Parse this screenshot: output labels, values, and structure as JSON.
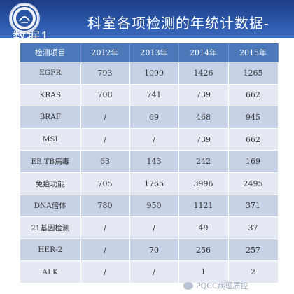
{
  "slide": {
    "title_line1": "科室各项检测的年统计数据-",
    "title_line2": "数据1"
  },
  "table": {
    "headers": [
      "检测项目",
      "2012年",
      "2013年",
      "2014年",
      "2015年"
    ],
    "rows": [
      [
        "EGFR",
        "793",
        "1099",
        "1426",
        "1265"
      ],
      [
        "KRAS",
        "708",
        "741",
        "739",
        "662"
      ],
      [
        "BRAF",
        "/",
        "69",
        "468",
        "945"
      ],
      [
        "MSI",
        "/",
        "/",
        "739",
        "662"
      ],
      [
        "EB,TB病毒",
        "63",
        "143",
        "242",
        "169"
      ],
      [
        "免疫功能",
        "705",
        "1765",
        "3996",
        "2495"
      ],
      [
        "DNA倍体",
        "780",
        "950",
        "1121",
        "371"
      ],
      [
        "21基因检测",
        "/",
        "/",
        "49",
        "37"
      ],
      [
        "HER-2",
        "/",
        "70",
        "256",
        "257"
      ],
      [
        "ALK",
        "/",
        "/",
        "1",
        "2"
      ]
    ]
  },
  "watermark": {
    "text": "PQCC病理质控",
    "icon": "wechat-icon"
  },
  "colors": {
    "header_band": "#2a56a8",
    "table_header": "#4c79ba",
    "row_dark": "#c7d2e6",
    "row_light": "#e4e9f3"
  }
}
